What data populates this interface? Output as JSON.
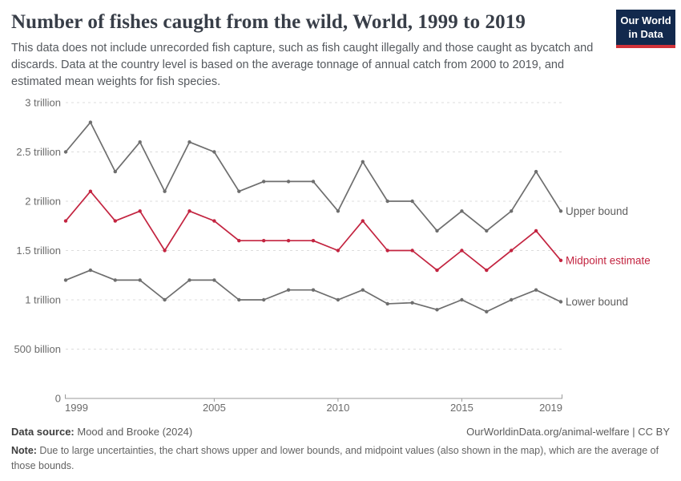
{
  "header": {
    "title": "Number of fishes caught from the wild, World, 1999 to 2019",
    "subtitle": "This data does not include unrecorded fish capture, such as fish caught illegally and those caught as bycatch and discards. Data at the country level is based on the average tonnage of annual catch from 2000 to 2019, and estimated mean weights for fish species.",
    "logo": {
      "line1": "Our World",
      "line2": "in Data",
      "bg_color": "#12294d",
      "accent_color": "#d13239"
    }
  },
  "chart_data": {
    "type": "line",
    "title": "Number of fishes caught from the wild, World, 1999 to 2019",
    "x": [
      1999,
      2000,
      2001,
      2002,
      2003,
      2004,
      2005,
      2006,
      2007,
      2008,
      2009,
      2010,
      2011,
      2012,
      2013,
      2014,
      2015,
      2016,
      2017,
      2018,
      2019
    ],
    "series": [
      {
        "name": "Upper bound",
        "color": "#6e6e6e",
        "label_color": "#5e5e5e",
        "values": [
          2.5,
          2.8,
          2.3,
          2.6,
          2.1,
          2.6,
          2.5,
          2.1,
          2.2,
          2.2,
          2.2,
          1.9,
          2.4,
          2.0,
          2.0,
          1.7,
          1.9,
          1.7,
          1.9,
          2.3,
          1.9
        ]
      },
      {
        "name": "Midpoint estimate",
        "color": "#c32440",
        "label_color": "#c32440",
        "values": [
          1.8,
          2.1,
          1.8,
          1.9,
          1.5,
          1.9,
          1.8,
          1.6,
          1.6,
          1.6,
          1.6,
          1.5,
          1.8,
          1.5,
          1.5,
          1.3,
          1.5,
          1.3,
          1.5,
          1.7,
          1.4
        ]
      },
      {
        "name": "Lower bound",
        "color": "#6e6e6e",
        "label_color": "#5e5e5e",
        "values": [
          1.2,
          1.3,
          1.2,
          1.2,
          1.0,
          1.2,
          1.2,
          1.0,
          1.0,
          1.1,
          1.1,
          1.0,
          1.1,
          0.96,
          0.97,
          0.9,
          1.0,
          0.88,
          1.0,
          1.1,
          0.98
        ]
      }
    ],
    "unit": "trillion",
    "ylim": [
      0,
      3
    ],
    "y_ticks": [
      {
        "value": 3,
        "label": "3 trillion"
      },
      {
        "value": 2.5,
        "label": "2.5 trillion"
      },
      {
        "value": 2,
        "label": "2 trillion"
      },
      {
        "value": 1.5,
        "label": "1.5 trillion"
      },
      {
        "value": 1,
        "label": "1 trillion"
      },
      {
        "value": 0.5,
        "label": "500 billion"
      },
      {
        "value": 0,
        "label": "0"
      }
    ],
    "x_ticks": [
      1999,
      2005,
      2010,
      2015,
      2019
    ],
    "grid": "dashed-horizontal",
    "legend_position": "end-of-line-labels",
    "colors": {
      "grid": "#dcdcdc",
      "axis": "#9a9a9a",
      "tick_text": "#6b6b6b"
    }
  },
  "footer": {
    "datasource_label": "Data source:",
    "datasource_value": " Mood and Brooke (2024)",
    "rights": "OurWorldinData.org/animal-welfare | CC BY",
    "note_label": "Note:",
    "note_value": " Due to large uncertainties, the chart shows upper and lower bounds, and midpoint values (also shown in the map), which are the average of those bounds."
  }
}
